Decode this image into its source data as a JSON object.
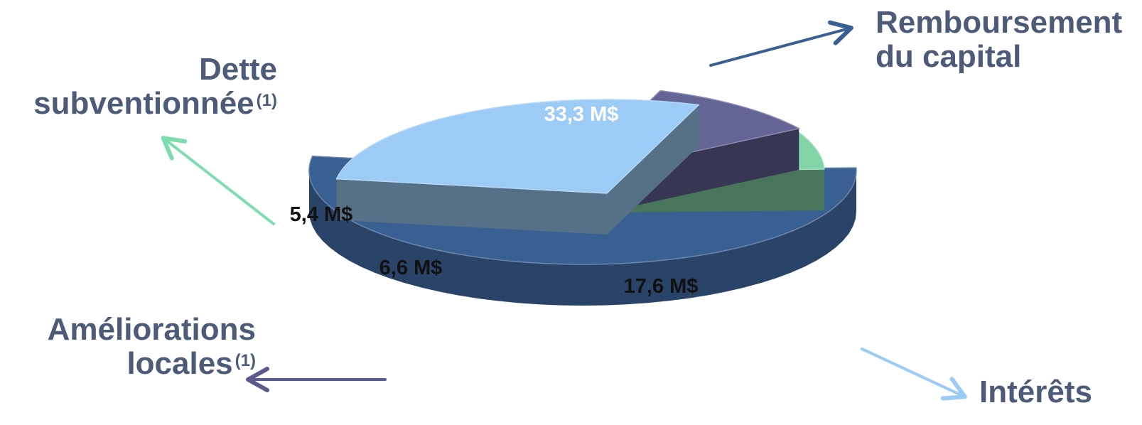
{
  "chart_data": {
    "type": "pie",
    "title": "",
    "unit": "M$",
    "slices": [
      {
        "name": "Remboursement du capital",
        "value": 33.3,
        "label": "33,3 M$",
        "color": "#3a5f92",
        "exploded": false
      },
      {
        "name": "Intérêts",
        "value": 17.6,
        "label": "17,6 M$",
        "color": "#9ccbf6",
        "exploded": true
      },
      {
        "name": "Améliorations locales",
        "value": 6.6,
        "label": "6,6 M$",
        "color": "#656497",
        "exploded": true
      },
      {
        "name": "Dette subventionnée",
        "value": 5.4,
        "label": "5,4 M$",
        "color": "#82d4a7",
        "exploded": true
      }
    ]
  },
  "callouts": {
    "remboursement": {
      "line1": "Remboursement",
      "line2": "du capital",
      "color": "#3a5f92"
    },
    "dette": {
      "line1": "Dette",
      "line2": "subventionnée",
      "note": "(1)",
      "color": "#7fdcb0"
    },
    "ameliorations": {
      "line1": "Améliorations",
      "line2": "locales",
      "note": "(1)",
      "color": "#5b5a8c"
    },
    "interets": {
      "line1": "Intérêts",
      "color": "#9ccbf6"
    }
  }
}
